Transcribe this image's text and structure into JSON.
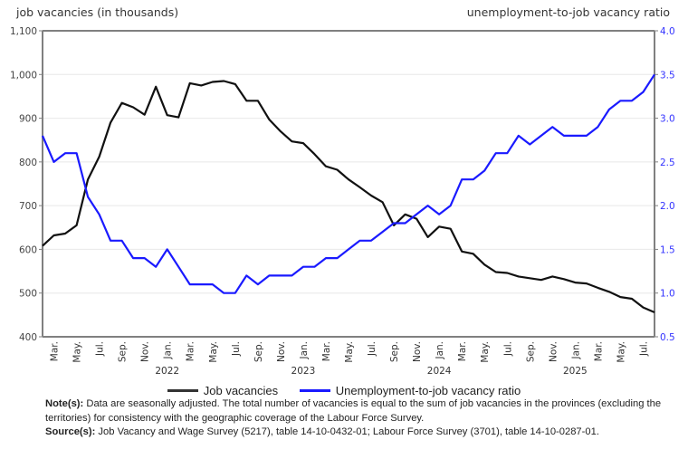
{
  "chart_data": {
    "type": "line",
    "left_axis_title": "job vacancies (in thousands)",
    "right_axis_title": "unemployment-to-job vacancy ratio",
    "left_ylim": [
      400,
      1100
    ],
    "left_ticks": [
      "400",
      "500",
      "600",
      "700",
      "800",
      "900",
      "1,000",
      "1,100"
    ],
    "left_tick_values": [
      400,
      500,
      600,
      700,
      800,
      900,
      1000,
      1100
    ],
    "right_ylim": [
      0.5,
      4.0
    ],
    "right_ticks": [
      "0.5",
      "1.0",
      "1.5",
      "2.0",
      "2.5",
      "3.0",
      "3.5",
      "4.0"
    ],
    "right_tick_values": [
      0.5,
      1.0,
      1.5,
      2.0,
      2.5,
      3.0,
      3.5,
      4.0
    ],
    "grid": true,
    "x_start": "2021-02",
    "x_month_labels": [
      {
        "i": 1,
        "label": "Mar."
      },
      {
        "i": 3,
        "label": "May."
      },
      {
        "i": 5,
        "label": "Jul."
      },
      {
        "i": 7,
        "label": "Sep."
      },
      {
        "i": 9,
        "label": "Nov."
      },
      {
        "i": 11,
        "label": "Jan."
      },
      {
        "i": 13,
        "label": "Mar."
      },
      {
        "i": 15,
        "label": "May."
      },
      {
        "i": 17,
        "label": "Jul."
      },
      {
        "i": 19,
        "label": "Sep."
      },
      {
        "i": 21,
        "label": "Nov."
      },
      {
        "i": 23,
        "label": "Jan."
      },
      {
        "i": 25,
        "label": "Mar."
      },
      {
        "i": 27,
        "label": "May."
      },
      {
        "i": 29,
        "label": "Jul."
      },
      {
        "i": 31,
        "label": "Sep."
      },
      {
        "i": 33,
        "label": "Nov."
      },
      {
        "i": 35,
        "label": "Jan."
      },
      {
        "i": 37,
        "label": "Mar."
      },
      {
        "i": 39,
        "label": "May."
      },
      {
        "i": 41,
        "label": "Jul."
      },
      {
        "i": 43,
        "label": "Sep."
      },
      {
        "i": 45,
        "label": "Nov."
      },
      {
        "i": 47,
        "label": "Jan."
      },
      {
        "i": 49,
        "label": "Mar."
      },
      {
        "i": 51,
        "label": "May."
      },
      {
        "i": 53,
        "label": "Jul."
      }
    ],
    "x_year_labels": [
      {
        "i": 11,
        "label": "2022"
      },
      {
        "i": 23,
        "label": "2023"
      },
      {
        "i": 35,
        "label": "2024"
      },
      {
        "i": 47,
        "label": "2025"
      }
    ],
    "series": [
      {
        "name": "Job vacancies",
        "axis": "left",
        "color": "#111111",
        "values": [
          608,
          632,
          636,
          655,
          760,
          812,
          890,
          935,
          925,
          908,
          972,
          907,
          902,
          980,
          975,
          983,
          985,
          978,
          940,
          940,
          897,
          870,
          847,
          843,
          818,
          790,
          782,
          760,
          742,
          723,
          708,
          655,
          680,
          670,
          628,
          652,
          647,
          595,
          590,
          565,
          548,
          546,
          538,
          534,
          530,
          538,
          532,
          524,
          522,
          512,
          503,
          491,
          487,
          467,
          456
        ]
      },
      {
        "name": "Unemployment-to-job vacancy ratio",
        "axis": "right",
        "color": "#1a1aff",
        "values": [
          2.8,
          2.5,
          2.6,
          2.6,
          2.1,
          1.9,
          1.6,
          1.6,
          1.4,
          1.4,
          1.3,
          1.5,
          1.3,
          1.1,
          1.1,
          1.1,
          1.0,
          1.0,
          1.2,
          1.1,
          1.2,
          1.2,
          1.2,
          1.3,
          1.3,
          1.4,
          1.4,
          1.5,
          1.6,
          1.6,
          1.7,
          1.8,
          1.8,
          1.9,
          2.0,
          1.9,
          2.0,
          2.3,
          2.3,
          2.4,
          2.6,
          2.6,
          2.8,
          2.7,
          2.8,
          2.9,
          2.8,
          2.8,
          2.8,
          2.9,
          3.1,
          3.2,
          3.2,
          3.3,
          3.5
        ]
      }
    ],
    "legend_position": "bottom"
  },
  "legend": {
    "items": [
      {
        "label": "Job vacancies",
        "color": "#111111"
      },
      {
        "label": "Unemployment-to-job vacancy ratio",
        "color": "#1a1aff"
      }
    ]
  },
  "notes": {
    "note_label": "Note(s):",
    "note_text": " Data are seasonally adjusted. The total number of vacancies is equal to the sum of job vacancies in the provinces (excluding the territories) for consistency with the geographic coverage of the Labour Force Survey.",
    "source_label": "Source(s):",
    "source_text": " Job Vacancy and Wage Survey (5217), table 14-10-0432-01; Labour Force Survey (3701), table 14-10-0287-01."
  }
}
